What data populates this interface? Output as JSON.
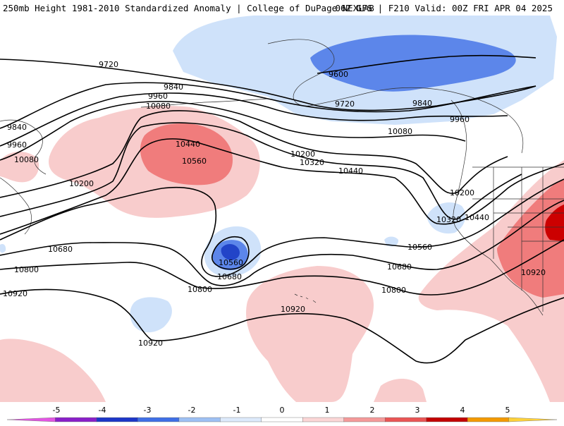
{
  "header": {
    "title": "250mb Height 1981-2010 Standardized Anomaly | College of DuPage NEXLAB",
    "run_info": "06Z GFS | F210 Valid: 00Z FRI APR 04 2025"
  },
  "legend": {
    "ticks": [
      "-5",
      "-4",
      "-3",
      "-2",
      "-1",
      "0",
      "1",
      "2",
      "3",
      "4",
      "5"
    ],
    "colors": [
      "#e455e4",
      "#8a1fc9",
      "#1c36c8",
      "#3f6fe6",
      "#9ec0f3",
      "#ddeafb",
      "#ffffff",
      "#fbd6d6",
      "#f49a9a",
      "#ea5555",
      "#c30000",
      "#f39a00",
      "#ffd23a"
    ]
  },
  "map": {
    "anomaly_colors": {
      "neg1": "#cfe2fa",
      "neg2": "#5c86ea",
      "neg3": "#2244c8",
      "pos1": "#f8cccc",
      "pos2": "#f07c7c",
      "pos3": "#cc0000"
    },
    "contour_labels": [
      {
        "id": "9720-w",
        "text": "9720"
      },
      {
        "id": "9840-w",
        "text": "9840"
      },
      {
        "id": "9960-w",
        "text": "9960"
      },
      {
        "id": "10080-w",
        "text": "10080"
      },
      {
        "id": "9840-farw",
        "text": "9840"
      },
      {
        "id": "9960-farw",
        "text": "9960"
      },
      {
        "id": "10080-farw",
        "text": "10080"
      },
      {
        "id": "10440-hi",
        "text": "10440"
      },
      {
        "id": "10560-hi",
        "text": "10560"
      },
      {
        "id": "10200-w",
        "text": "10200"
      },
      {
        "id": "9600-ak",
        "text": "9600"
      },
      {
        "id": "9720-ak",
        "text": "9720"
      },
      {
        "id": "9840-ak",
        "text": "9840"
      },
      {
        "id": "9960-e",
        "text": "9960"
      },
      {
        "id": "10080-c",
        "text": "10080"
      },
      {
        "id": "10200-c",
        "text": "10200"
      },
      {
        "id": "10320-c",
        "text": "10320"
      },
      {
        "id": "10440-c",
        "text": "10440"
      },
      {
        "id": "10200-e",
        "text": "10200"
      },
      {
        "id": "10320-e",
        "text": "10320"
      },
      {
        "id": "10440-e",
        "text": "10440"
      },
      {
        "id": "10560-e",
        "text": "10560"
      },
      {
        "id": "10680-e",
        "text": "10680"
      },
      {
        "id": "10800-e",
        "text": "10800"
      },
      {
        "id": "10920-e",
        "text": "10920"
      },
      {
        "id": "10680-w",
        "text": "10680"
      },
      {
        "id": "10800-w",
        "text": "10800"
      },
      {
        "id": "10920-w",
        "text": "10920"
      },
      {
        "id": "10560-lo",
        "text": "10560"
      },
      {
        "id": "10680-lo",
        "text": "10680"
      },
      {
        "id": "10800-lo",
        "text": "10800"
      },
      {
        "id": "10920-s",
        "text": "10920"
      },
      {
        "id": "10920-c",
        "text": "10920"
      }
    ]
  }
}
